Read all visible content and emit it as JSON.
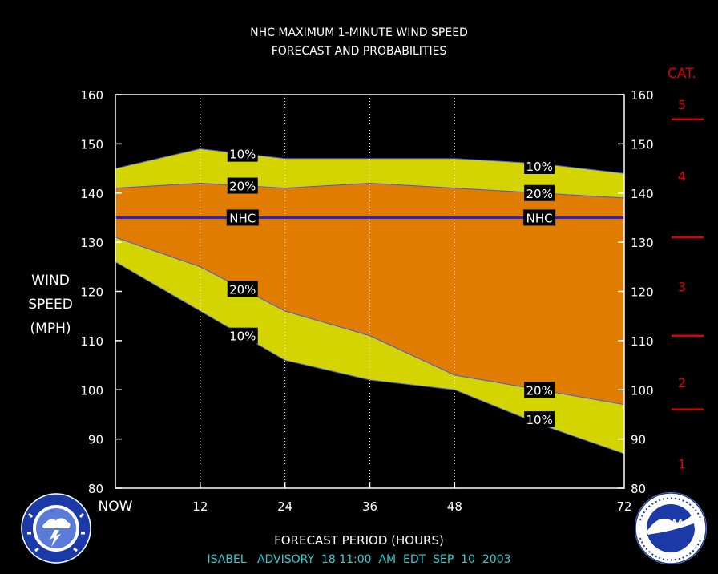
{
  "chart_data": {
    "type": "area",
    "title": [
      "NHC MAXIMUM 1-MINUTE WIND SPEED",
      "FORECAST AND PROBABILITIES"
    ],
    "xlabel": "FORECAST PERIOD (HOURS)",
    "ylabel": [
      "WIND",
      "SPEED",
      "(MPH)"
    ],
    "x_ticks": [
      {
        "x": 0,
        "label": "NOW"
      },
      {
        "x": 12,
        "label": "12"
      },
      {
        "x": 24,
        "label": "24"
      },
      {
        "x": 36,
        "label": "36"
      },
      {
        "x": 48,
        "label": "48"
      },
      {
        "x": 72,
        "label": "72"
      }
    ],
    "xlim": [
      0,
      72
    ],
    "ylim": [
      80,
      160
    ],
    "y_ticks": [
      80,
      90,
      100,
      110,
      120,
      130,
      140,
      150,
      160
    ],
    "x": [
      0,
      12,
      24,
      36,
      48,
      60,
      72
    ],
    "series": [
      {
        "name": "10%",
        "values": [
          145,
          149,
          147,
          147,
          147,
          146,
          144
        ]
      },
      {
        "name": "20%",
        "values": [
          141,
          142,
          141,
          142,
          141,
          140,
          139
        ]
      },
      {
        "name": "NHC",
        "values": [
          135,
          135,
          135,
          135,
          135,
          135,
          135
        ]
      },
      {
        "name": "20%",
        "values": [
          131,
          125,
          116,
          111,
          103,
          100,
          97
        ]
      },
      {
        "name": "10%",
        "values": [
          126,
          116,
          106,
          102,
          100,
          93,
          87
        ]
      }
    ],
    "series_labels": [
      {
        "text": "10%",
        "x": 18,
        "y": 148
      },
      {
        "text": "20%",
        "x": 18,
        "y": 141.5
      },
      {
        "text": "NHC",
        "x": 18,
        "y": 135
      },
      {
        "text": "20%",
        "x": 18,
        "y": 120.5
      },
      {
        "text": "10%",
        "x": 18,
        "y": 111
      },
      {
        "text": "10%",
        "x": 60,
        "y": 145.5
      },
      {
        "text": "20%",
        "x": 60,
        "y": 140
      },
      {
        "text": "NHC",
        "x": 60,
        "y": 135
      },
      {
        "text": "20%",
        "x": 60,
        "y": 100
      },
      {
        "text": "10%",
        "x": 60,
        "y": 94
      }
    ],
    "grid": "vertical dotted at 12, 24, 36, 48",
    "colors": {
      "band_10": "#d4d400",
      "band_20": "#e07c00",
      "nhc_line": "#2222dd",
      "edge_line": "#4455ff",
      "frame": "#ffffff",
      "category": "#e00000",
      "advisory": "#33cccc"
    },
    "categories_scale": {
      "title": "CAT.",
      "labels": [
        {
          "text": "1",
          "y": 85
        },
        {
          "text": "2",
          "y": 101.5
        },
        {
          "text": "3",
          "y": 121
        },
        {
          "text": "4",
          "y": 143.5
        },
        {
          "text": "5",
          "y": 158
        }
      ],
      "thresholds": [
        96,
        111,
        131,
        155
      ]
    },
    "advisory": "ISABEL   ADVISORY  18 11:00  AM  EDT  SEP  10  2003"
  },
  "logos": {
    "nws": {
      "text": "NATIONAL WEATHER SERVICE",
      "colors": [
        "#1b3aa8",
        "#ffffff"
      ]
    },
    "noaa": {
      "text": "NOAA",
      "ring_text": "NATIONAL OCEANIC AND ATMOSPHERIC ADMINISTRATION · U.S. DEPARTMENT OF COMMERCE",
      "colors": [
        "#1b3aa8",
        "#ffffff"
      ]
    }
  }
}
